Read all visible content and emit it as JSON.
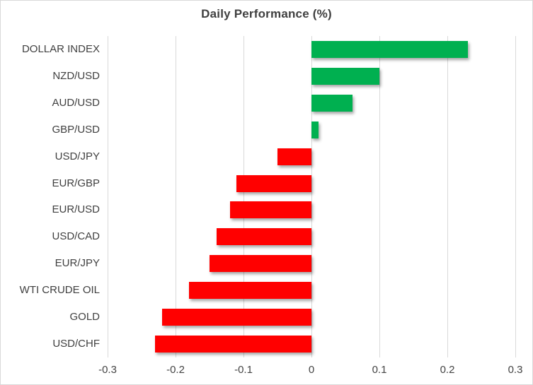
{
  "title": "Daily Performance (%)",
  "colors": {
    "positive_bar": "#00b050",
    "negative_bar": "#ff0000",
    "gridline": "#d9d9d9",
    "text": "#404040",
    "border": "#d9d9d9"
  },
  "chart_data": {
    "type": "bar",
    "orientation": "horizontal",
    "title": "Daily Performance (%)",
    "categories": [
      "DOLLAR INDEX",
      "NZD/USD",
      "AUD/USD",
      "GBP/USD",
      "USD/JPY",
      "EUR/GBP",
      "EUR/USD",
      "USD/CAD",
      "EUR/JPY",
      "WTI CRUDE OIL",
      "GOLD",
      "USD/CHF"
    ],
    "values": [
      0.23,
      0.1,
      0.06,
      0.01,
      -0.05,
      -0.11,
      -0.12,
      -0.14,
      -0.15,
      -0.18,
      -0.22,
      -0.23
    ],
    "xlabel": "",
    "ylabel": "",
    "xlim": [
      -0.3,
      0.3
    ],
    "x_ticks": [
      -0.3,
      -0.2,
      -0.1,
      0,
      0.1,
      0.2,
      0.3
    ],
    "x_tick_labels": [
      "-0.3",
      "-0.2",
      "-0.1",
      "0",
      "0.1",
      "0.2",
      "0.3"
    ],
    "grid": true,
    "legend": false
  }
}
